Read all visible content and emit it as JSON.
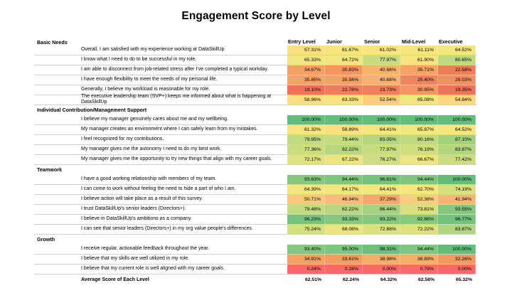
{
  "title": "Engagement Score by Level",
  "levels": [
    "Entry Level",
    "Junior",
    "Senior",
    "Mid-Level",
    "Executive"
  ],
  "sections": [
    {
      "name": "Basic Needs",
      "rows": [
        {
          "q": "Overall, I am satisfied with my experience working at DataSkillUp",
          "v": [
            "57.31%",
            "61.67%",
            "61.02%",
            "61.11%",
            "64.52%"
          ],
          "c": [
            "#fbe083",
            "#f8e47f",
            "#f9e480",
            "#f8e47f",
            "#f3e67f"
          ]
        },
        {
          "q": "I know what I need to do to be successful in my role.",
          "v": [
            "65.33%",
            "64.72%",
            "77.97%",
            "61.90%",
            "80.65%"
          ],
          "c": [
            "#f2e67f",
            "#f3e67f",
            "#c9dc80",
            "#f8e47f",
            "#bfd981"
          ]
        },
        {
          "q": "I am able to disconnect from job-related stress after I've completed a typical workday.",
          "v": [
            "34.67%",
            "30.83%",
            "40.68%",
            "35.71%",
            "22.58%"
          ],
          "c": [
            "#f5a066",
            "#f39662",
            "#f7b26d",
            "#f5a366",
            "#ee7d5b"
          ]
        },
        {
          "q": "I have enough flexibility to meet the needs of my personal life.",
          "v": [
            "35.85%",
            "35.56%",
            "40.68%",
            "25.40%",
            "29.03%"
          ],
          "c": [
            "#f5a366",
            "#f5a266",
            "#f7b26d",
            "#f0855d",
            "#f29060"
          ]
        },
        {
          "q": "Generally, I believe my workload is reasonable for my role.",
          "v": [
            "19.10%",
            "22.78%",
            "23.73%",
            "30.95%",
            "19.35%"
          ],
          "c": [
            "#ec735a",
            "#ee7e5b",
            "#ee815c",
            "#f39662",
            "#ec745a"
          ]
        },
        {
          "q": "The executive leadership team (SVP+) keeps me informed about what is happening at DataSkillUp",
          "v": [
            "58.96%",
            "63.33%",
            "52.54%",
            "65.08%",
            "54.84%"
          ],
          "c": [
            "#fbe083",
            "#f6e57f",
            "#fad07a",
            "#f2e67f",
            "#fbd77e"
          ]
        }
      ]
    },
    {
      "name": "Individual Contribution/Management Support",
      "rows": [
        {
          "q": "I believe my manager genuinely cares about me and my wellbeing.",
          "v": [
            "100.00%",
            "100.00%",
            "100.00%",
            "100.00%",
            "100.00%"
          ],
          "c": [
            "#63be7b",
            "#63be7b",
            "#63be7b",
            "#63be7b",
            "#63be7b"
          ]
        },
        {
          "q": "My manager creates an environment where I can safely learn from my mistakes.",
          "v": [
            "61.32%",
            "58.89%",
            "64.41%",
            "65.87%",
            "64.52%"
          ],
          "c": [
            "#f8e47f",
            "#fbe083",
            "#f4e67f",
            "#f1e67f",
            "#f3e67f"
          ]
        },
        {
          "q": "I feel recognized for my contributions.",
          "v": [
            "79.95%",
            "79.44%",
            "83.05%",
            "80.16%",
            "87.10%"
          ],
          "c": [
            "#c2da80",
            "#c4db80",
            "#b5d680",
            "#c1da80",
            "#a3d17f"
          ]
        },
        {
          "q": "My manager gives me the autonomy I need to do my best work.",
          "v": [
            "77.36%",
            "82.22%",
            "77.97%",
            "76.19%",
            "83.87%"
          ],
          "c": [
            "#ccdd80",
            "#b9d780",
            "#c9dc80",
            "#d1de80",
            "#b2d580"
          ]
        },
        {
          "q": "My manager gives me the opportunity to try new things that align with my career goals.",
          "v": [
            "72.17%",
            "67.22%",
            "76.27%",
            "66.67%",
            "77.42%"
          ],
          "c": [
            "#dee27f",
            "#eee57f",
            "#d0de80",
            "#efe57f",
            "#ccdd80"
          ]
        }
      ]
    },
    {
      "name": "Teamwork",
      "rows": [
        {
          "q": "I have a good working relationship with members of my team.",
          "v": [
            "93.63%",
            "94.44%",
            "96.61%",
            "94.44%",
            "100.00%"
          ],
          "c": [
            "#84c77d",
            "#80c67d",
            "#74c37c",
            "#80c67d",
            "#63be7b"
          ]
        },
        {
          "q": "I can come to work without feeling the need to hide a part of who I am.",
          "v": [
            "64.39%",
            "64.17%",
            "64.41%",
            "62.70%",
            "74.19%"
          ],
          "c": [
            "#f4e67f",
            "#f4e67f",
            "#f4e67f",
            "#f7e57f",
            "#d8e07f"
          ]
        },
        {
          "q": "I believe action will take place as a result of this survey.",
          "v": [
            "50.71%",
            "46.94%",
            "37.29%",
            "52.38%",
            "41.94%"
          ],
          "c": [
            "#f9c977",
            "#f8bd72",
            "#f6a868",
            "#facf7a",
            "#f7b66e"
          ]
        },
        {
          "q": "I trust DataSkillUp's senior leaders (Directors+).",
          "v": [
            "79.48%",
            "82.22%",
            "86.44%",
            "73.81%",
            "93.55%"
          ],
          "c": [
            "#c4db80",
            "#b9d780",
            "#a6d17f",
            "#d8e07f",
            "#84c77d"
          ]
        },
        {
          "q": "I believe in DataSkillUp's ambitions as a company.",
          "v": [
            "96.23%",
            "93.33%",
            "93.22%",
            "92.86%",
            "96.77%"
          ],
          "c": [
            "#76c47c",
            "#86c87d",
            "#86c87d",
            "#88c97e",
            "#73c37c"
          ]
        },
        {
          "q": "I can see that senior leaders (Directors+) in my org value people's differences.",
          "v": [
            "75.24%",
            "68.06%",
            "72.88%",
            "72.22%",
            "83.87%"
          ],
          "c": [
            "#d4df80",
            "#ebe47f",
            "#dbe17f",
            "#dde27f",
            "#b2d580"
          ]
        }
      ]
    },
    {
      "name": "Growth",
      "rows": [
        {
          "q": "I receive regular, actionable feedback throughout the year.",
          "v": [
            "93.40%",
            "95.00%",
            "98.31%",
            "94.44%",
            "100.00%"
          ],
          "c": [
            "#85c87d",
            "#7dc67d",
            "#6cc07b",
            "#80c67d",
            "#63be7b"
          ]
        },
        {
          "q": "I believe that my skills are well utilized in my role.",
          "v": [
            "34.91%",
            "33.61%",
            "38.98%",
            "38.89%",
            "32.26%"
          ],
          "c": [
            "#f5a166",
            "#f49c64",
            "#f6ad6a",
            "#f6ad6a",
            "#f39962"
          ]
        },
        {
          "q": "I believe that my current role is well aligned with my career goals.",
          "v": [
            "0.24%",
            "0.28%",
            "0.00%",
            "0.79%",
            "0.00%"
          ],
          "c": [
            "#f8696b",
            "#f8696b",
            "#f8696b",
            "#f86a6b",
            "#f8696b"
          ]
        }
      ]
    }
  ],
  "average": {
    "label": "Average Score of Each Level",
    "values": [
      "62.51%",
      "62.24%",
      "64.32%",
      "62.58%",
      "65.32%"
    ]
  }
}
